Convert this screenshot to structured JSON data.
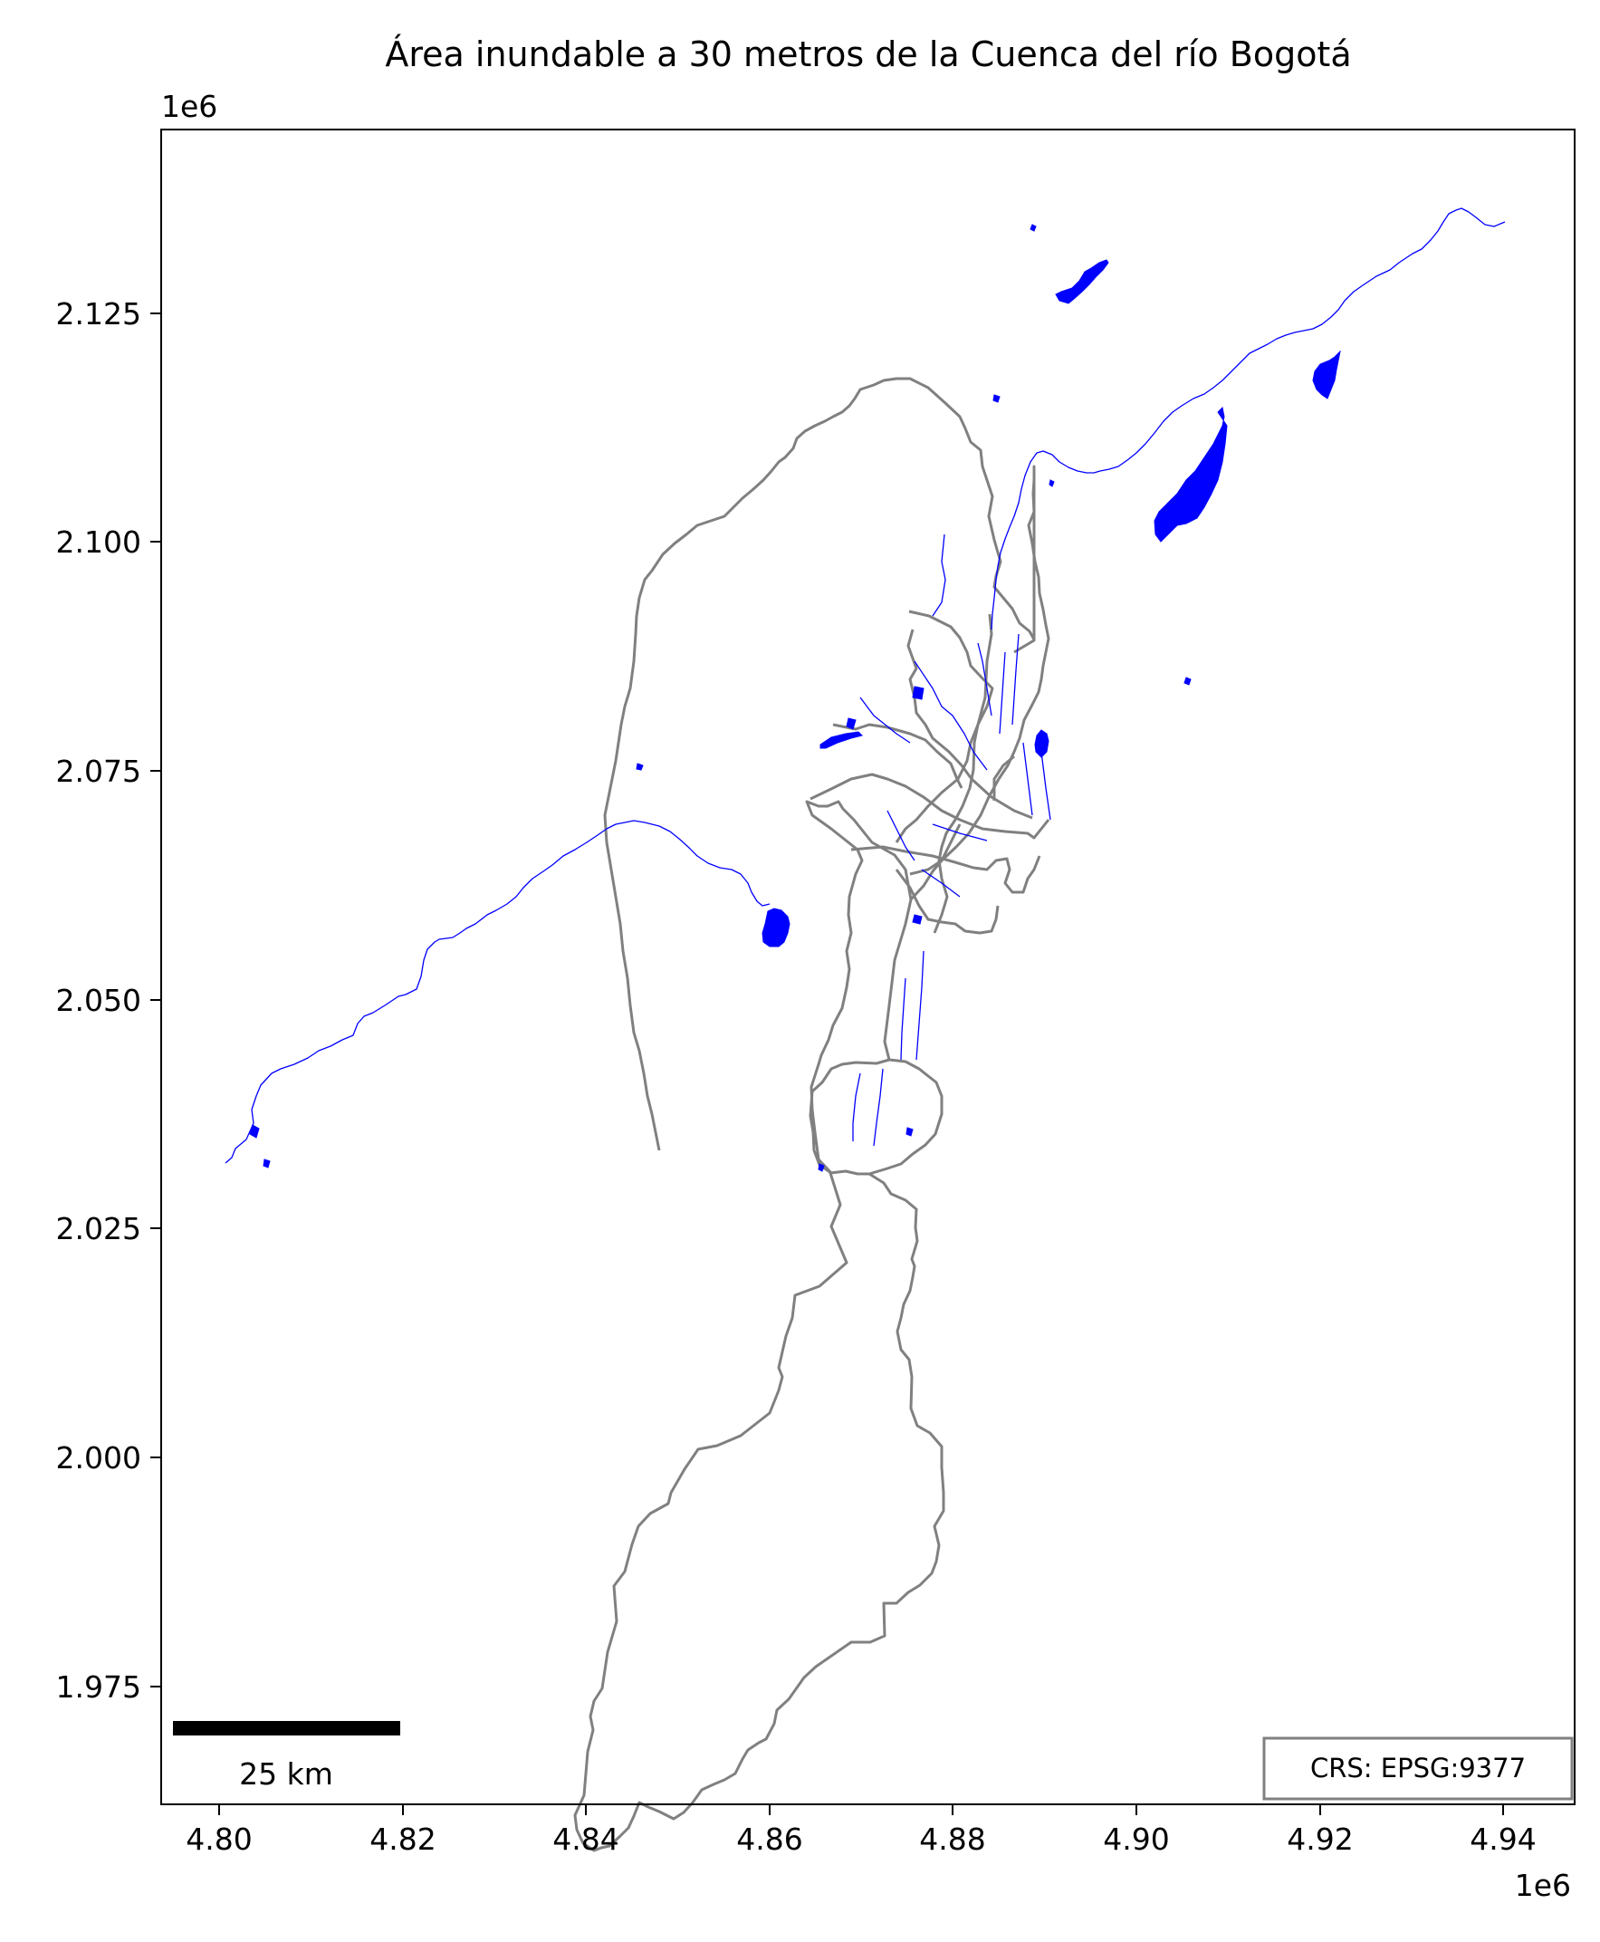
{
  "chart_data": {
    "type": "map",
    "title": "Área inundable a 30 metros de la Cuenca del río Bogotá",
    "x_axis": {
      "ticks": [
        4.8,
        4.82,
        4.84,
        4.86,
        4.88,
        4.9,
        4.92,
        4.94
      ],
      "tick_labels": [
        "4.80",
        "4.82",
        "4.84",
        "4.86",
        "4.88",
        "4.90",
        "4.92",
        "4.94"
      ],
      "offset_label": "1e6",
      "range": [
        4.7935,
        4.9475
      ]
    },
    "y_axis": {
      "ticks": [
        1.975,
        2.0,
        2.025,
        2.05,
        2.075,
        2.1,
        2.125
      ],
      "tick_labels": [
        "1.975",
        "2.000",
        "2.025",
        "2.050",
        "2.075",
        "2.100",
        "2.125"
      ],
      "offset_label": "1e6",
      "range": [
        1.9625,
        2.1445
      ]
    },
    "scale_bar": {
      "label": "25 km",
      "length_km": 25
    },
    "crs_label": "CRS: EPSG:9377",
    "colors": {
      "flood_area": "#0000ff",
      "boundaries": "#808080",
      "scale_bar": "#000000"
    }
  }
}
